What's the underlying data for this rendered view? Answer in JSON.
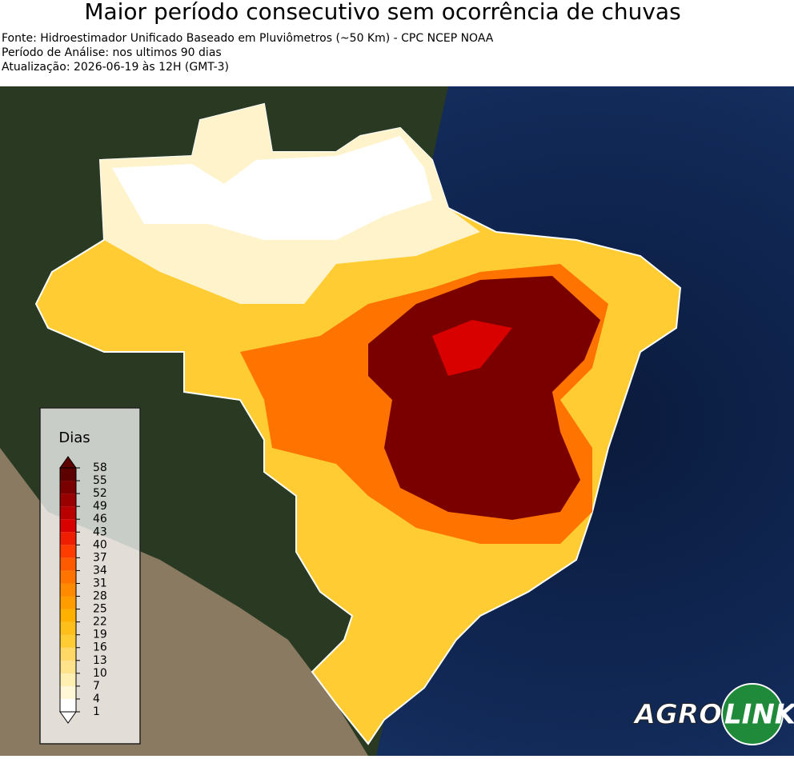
{
  "header": {
    "title": "Maior período consecutivo sem ocorrência de chuvas",
    "source": "Fonte: Hidroestimador Unificado Baseado em Pluviômetros (~50 Km) - CPC NCEP NOAA",
    "period": "Período de Análise: nos ultimos 90 dias",
    "update": "Atualização: 2026-06-19 às 12H (GMT-3)"
  },
  "legend": {
    "title": "Dias",
    "ticks": [
      1,
      4,
      7,
      10,
      13,
      16,
      19,
      22,
      25,
      28,
      31,
      34,
      37,
      40,
      43,
      46,
      49,
      52,
      55,
      58
    ],
    "colors": [
      "#ffffff",
      "#fff7d6",
      "#ffefb0",
      "#ffe38a",
      "#ffd866",
      "#ffcc33",
      "#ffbf1a",
      "#ffb000",
      "#ff9d00",
      "#ff8a00",
      "#ff7300",
      "#ff5a00",
      "#ff3c00",
      "#f01e00",
      "#d90000",
      "#b80000",
      "#990000",
      "#7a0000",
      "#5c0000"
    ]
  },
  "logo": {
    "left": "AGRO",
    "right": "LINK"
  }
}
